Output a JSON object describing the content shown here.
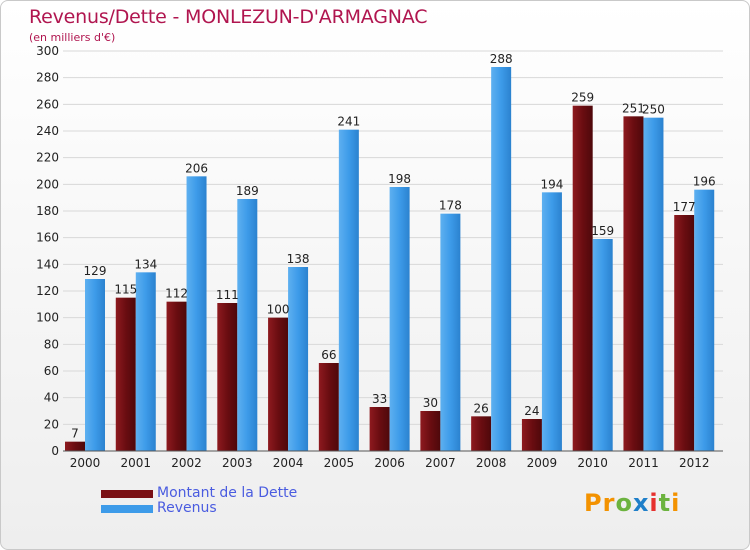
{
  "header": {
    "title": "Revenus/Dette - MONLEZUN-D'ARMAGNAC",
    "subtitle": "(en milliers d'€)"
  },
  "legend": {
    "items": [
      {
        "label": "Montant de la Dette",
        "color": "#7a1014"
      },
      {
        "label": "Revenus",
        "color": "#3d9be9"
      }
    ]
  },
  "logo": {
    "text": "Proxiti",
    "colors": [
      "#f39200",
      "#6cb33f",
      "#1f7fc9",
      "#e6312e"
    ]
  },
  "colors": {
    "dette": "#7a1014",
    "revenus": "#3d9be9",
    "title": "#b0154f",
    "axis_text": "#222222",
    "grid": "#d8d8d8"
  },
  "chart_data": {
    "type": "bar",
    "title": "Revenus/Dette - MONLEZUN-D'ARMAGNAC",
    "subtitle": "(en milliers d'€)",
    "xlabel": "",
    "ylabel": "",
    "ylim": [
      0,
      300
    ],
    "yticks": [
      0,
      20,
      40,
      60,
      80,
      100,
      120,
      140,
      160,
      180,
      200,
      220,
      240,
      260,
      280,
      300
    ],
    "grid": true,
    "legend_position": "bottom-left",
    "categories": [
      "2000",
      "2001",
      "2002",
      "2003",
      "2004",
      "2005",
      "2006",
      "2007",
      "2008",
      "2009",
      "2010",
      "2011",
      "2012"
    ],
    "series": [
      {
        "name": "Montant de la Dette",
        "values": [
          7,
          115,
          112,
          111,
          100,
          66,
          33,
          30,
          26,
          24,
          259,
          251,
          177
        ]
      },
      {
        "name": "Revenus",
        "values": [
          129,
          134,
          206,
          189,
          138,
          241,
          198,
          178,
          288,
          194,
          159,
          250,
          196
        ]
      }
    ]
  }
}
